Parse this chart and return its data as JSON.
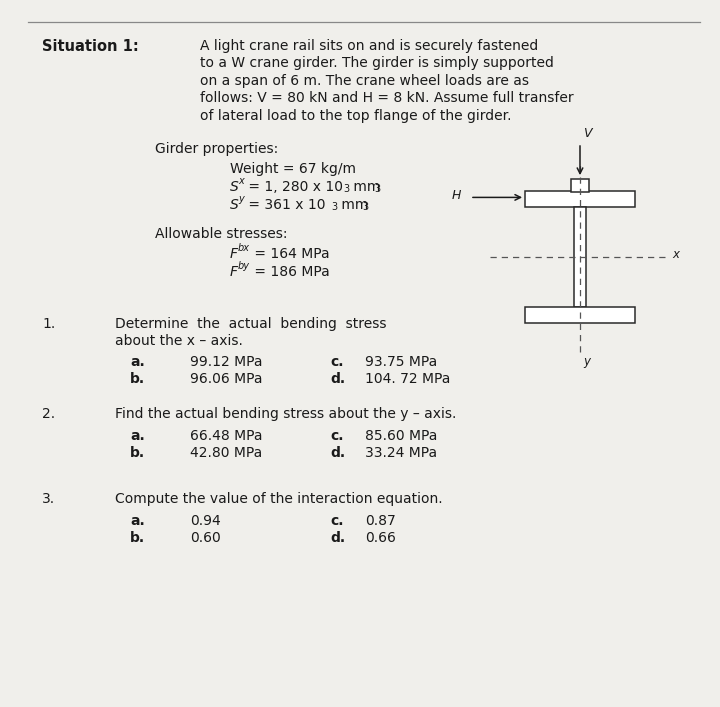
{
  "bg_color": "#f0efeb",
  "font_color": "#1a1a1a",
  "title_bold": "Situation 1:",
  "situation_text": [
    "A light crane rail sits on and is securely fastened",
    "to a W crane girder. The girder is simply supported",
    "on a span of 6 m. The crane wheel loads are as",
    "follows: V = 80 kN and H = 8 kN. Assume full transfer",
    "of lateral load to the top flange of the girder."
  ]
}
